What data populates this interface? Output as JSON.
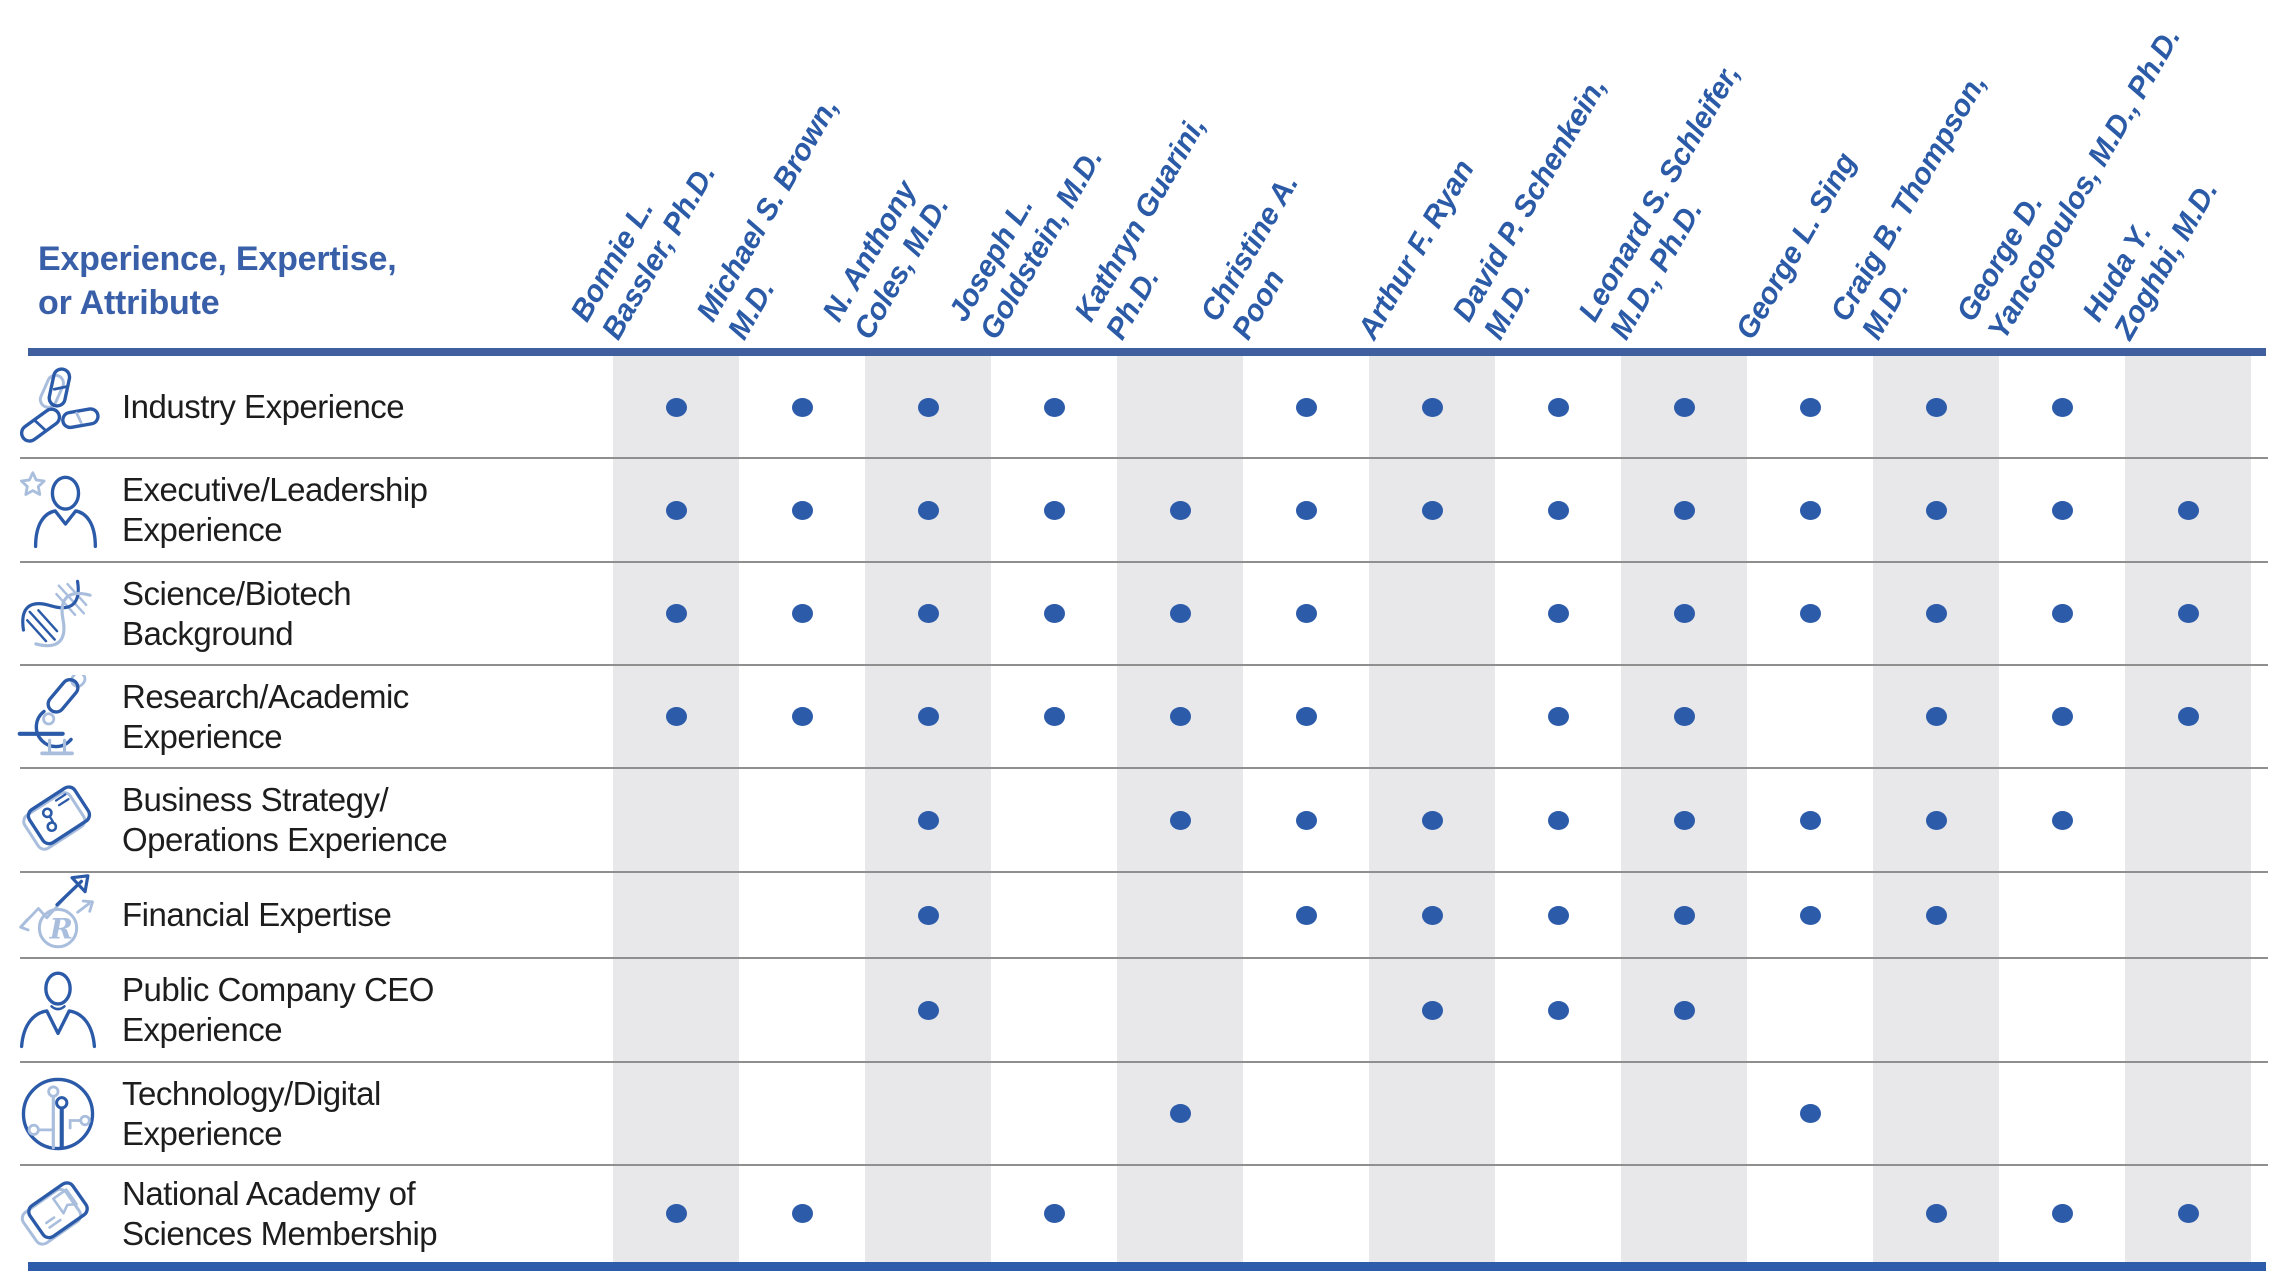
{
  "title": {
    "line1": "Experience, Expertise,",
    "line2": "or Attribute"
  },
  "columns": [
    {
      "lines": [
        "Bonnie L.",
        "Bassler, Ph.D."
      ]
    },
    {
      "lines": [
        "Michael S. Brown,",
        "M.D."
      ]
    },
    {
      "lines": [
        "N. Anthony",
        "Coles, M.D."
      ]
    },
    {
      "lines": [
        "Joseph L.",
        "Goldstein, M.D."
      ]
    },
    {
      "lines": [
        "Kathryn Guarini,",
        "Ph.D."
      ]
    },
    {
      "lines": [
        "Christine A.",
        "Poon"
      ]
    },
    {
      "lines": [
        "Arthur F. Ryan"
      ]
    },
    {
      "lines": [
        "David P. Schenkein,",
        "M.D."
      ]
    },
    {
      "lines": [
        "Leonard S. Schleifer,",
        "M.D., Ph.D."
      ]
    },
    {
      "lines": [
        "George L. Sing"
      ]
    },
    {
      "lines": [
        "Craig B. Thompson,",
        "M.D."
      ]
    },
    {
      "lines": [
        "George D.",
        "Yancopoulos, M.D., Ph.D."
      ]
    },
    {
      "lines": [
        "Huda Y.",
        "Zoghbi, M.D."
      ]
    }
  ],
  "rows": [
    {
      "icon": "antibody-icon",
      "label_lines": [
        "Industry Experience"
      ],
      "dots": [
        1,
        1,
        1,
        1,
        0,
        1,
        1,
        1,
        1,
        1,
        1,
        1,
        0
      ]
    },
    {
      "icon": "leadership-icon",
      "label_lines": [
        "Executive/Leadership",
        "Experience"
      ],
      "dots": [
        1,
        1,
        1,
        1,
        1,
        1,
        1,
        1,
        1,
        1,
        1,
        1,
        1
      ]
    },
    {
      "icon": "dna-icon",
      "label_lines": [
        "Science/Biotech",
        "Background"
      ],
      "dots": [
        1,
        1,
        1,
        1,
        1,
        1,
        0,
        1,
        1,
        1,
        1,
        1,
        1
      ]
    },
    {
      "icon": "microscope-icon",
      "label_lines": [
        "Research/Academic",
        "Experience"
      ],
      "dots": [
        1,
        1,
        1,
        1,
        1,
        1,
        0,
        1,
        1,
        0,
        1,
        1,
        1
      ]
    },
    {
      "icon": "strategy-icon",
      "label_lines": [
        "Business Strategy/",
        "Operations Experience"
      ],
      "dots": [
        0,
        0,
        1,
        0,
        1,
        1,
        1,
        1,
        1,
        1,
        1,
        1,
        0
      ]
    },
    {
      "icon": "financial-icon",
      "label_lines": [
        "Financial Expertise"
      ],
      "dots": [
        0,
        0,
        1,
        0,
        0,
        1,
        1,
        1,
        1,
        1,
        1,
        0,
        0
      ]
    },
    {
      "icon": "ceo-icon",
      "label_lines": [
        "Public Company CEO",
        "Experience"
      ],
      "dots": [
        0,
        0,
        1,
        0,
        0,
        0,
        1,
        1,
        1,
        0,
        0,
        0,
        0
      ]
    },
    {
      "icon": "technology-icon",
      "label_lines": [
        "Technology/Digital",
        "Experience"
      ],
      "dots": [
        0,
        0,
        0,
        0,
        1,
        0,
        0,
        0,
        0,
        1,
        0,
        0,
        0
      ]
    },
    {
      "icon": "academy-icon",
      "label_lines": [
        "National Academy of",
        "Sciences Membership"
      ],
      "dots": [
        1,
        1,
        0,
        1,
        0,
        0,
        0,
        0,
        0,
        0,
        1,
        1,
        1
      ]
    }
  ],
  "colors": {
    "accent_blue": "#2e5ba8",
    "title_blue": "#3a5fa9",
    "name_blue": "#2b5aa7",
    "dot_blue": "#2c5ba9",
    "rule_top": "#3f5f9e",
    "rule_bottom": "#2e5cab",
    "band_gray": "#e8e8ea",
    "divider_gray": "#8f8f8f",
    "label_black": "#1d1d1d",
    "icon_dark": "#2b5aa8",
    "icon_light": "#a9bedd"
  }
}
